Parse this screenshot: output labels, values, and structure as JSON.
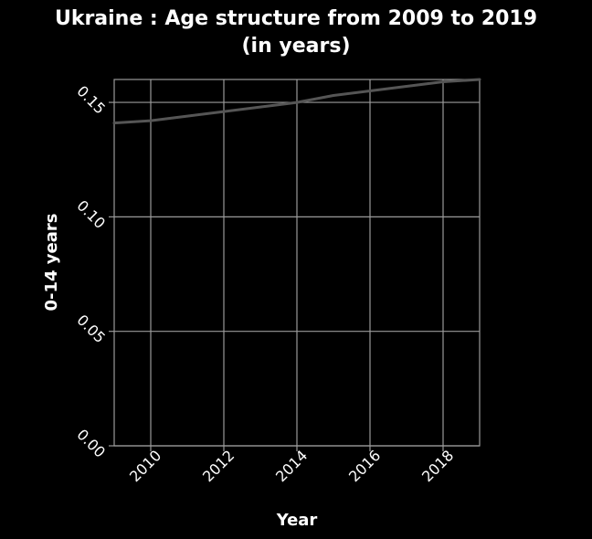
{
  "chart_data": {
    "type": "line",
    "title_line1": "Ukraine : Age structure from 2009 to 2019",
    "title_line2": "(in years)",
    "xlabel": "Year",
    "ylabel": "0-14 years",
    "xlim": [
      2009,
      2019
    ],
    "ylim": [
      0,
      0.16
    ],
    "x_ticks": [
      2010,
      2012,
      2014,
      2016,
      2018
    ],
    "x_tick_labels": [
      "2010",
      "2012",
      "2014",
      "2016",
      "2018"
    ],
    "y_ticks": [
      0.0,
      0.05,
      0.1,
      0.15
    ],
    "y_tick_labels": [
      "0.00",
      "0.05",
      "0.10",
      "0.15"
    ],
    "grid": true,
    "series": [
      {
        "x": [
          2009,
          2010,
          2011,
          2012,
          2013,
          2014,
          2015,
          2016,
          2017,
          2018,
          2019
        ],
        "y": [
          0.141,
          0.142,
          0.144,
          0.146,
          0.148,
          0.15,
          0.153,
          0.155,
          0.157,
          0.159,
          0.16
        ],
        "color": "#555555"
      }
    ],
    "colors": {
      "background": "#000000",
      "grid": "#9a9a9a",
      "text": "#ffffff",
      "line": "#555555"
    }
  }
}
